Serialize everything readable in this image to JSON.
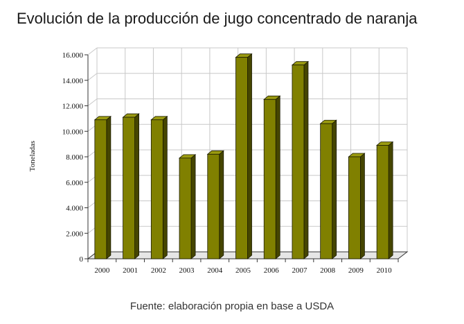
{
  "title": "Evolución de la producción de jugo concentrado de naranja",
  "source": "Fuente: elaboración propia en base a USDA",
  "colors": {
    "bar_front": "#808000",
    "bar_side": "#454500",
    "bar_top": "#9a9a10",
    "grid": "#c8c8c8",
    "axis": "#333333"
  },
  "chart_data": {
    "type": "bar",
    "ylabel": "Toneladas",
    "xlabel": "",
    "ylim": [
      0,
      16000
    ],
    "y_ticks": [
      0,
      2000,
      4000,
      6000,
      8000,
      10000,
      12000,
      14000,
      16000
    ],
    "y_tick_labels": [
      "0",
      "2.000",
      "4.000",
      "6.000",
      "8.000",
      "10.000",
      "12.000",
      "14.000",
      "16.000"
    ],
    "grid": true,
    "categories": [
      "2000",
      "2001",
      "2002",
      "2003",
      "2004",
      "2005",
      "2006",
      "2007",
      "2008",
      "2009",
      "2010"
    ],
    "values": [
      10900,
      11100,
      10900,
      7900,
      8200,
      15800,
      12500,
      15200,
      10600,
      8000,
      8900
    ]
  }
}
